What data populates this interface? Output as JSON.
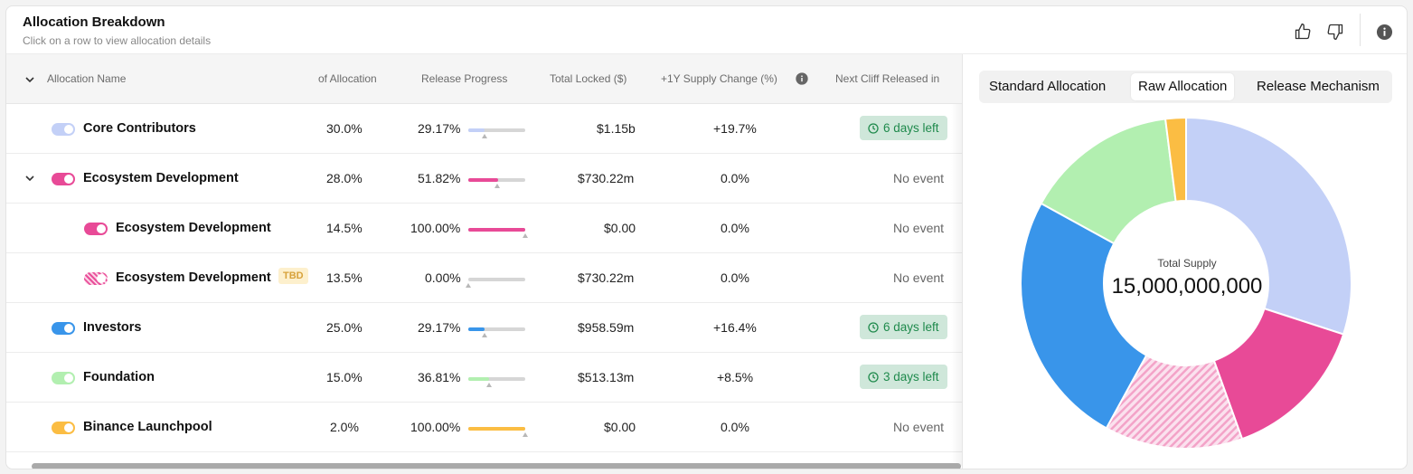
{
  "header": {
    "title": "Allocation Breakdown",
    "subtitle": "Click on a row to view allocation details"
  },
  "table": {
    "columns": {
      "name": "Allocation Name",
      "allocation": "of Allocation",
      "progress": "Release Progress",
      "locked": "Total Locked ($)",
      "supply_change": "+1Y Supply Change (%)",
      "next_cliff": "Next Cliff Released in"
    },
    "rows": [
      {
        "name": "Core Contributors",
        "allocation": "30.0%",
        "progress": "29.17%",
        "progress_value": 0.2917,
        "locked": "$1.15b",
        "supply_change": "+19.7%",
        "next_cliff": "6 days left",
        "color": "#c3d0f7"
      },
      {
        "name": "Ecosystem Development",
        "allocation": "28.0%",
        "progress": "51.82%",
        "progress_value": 0.5182,
        "locked": "$730.22m",
        "supply_change": "0.0%",
        "next_cliff": "No event",
        "color": "#e84a97"
      },
      {
        "name": "Ecosystem Development",
        "allocation": "14.5%",
        "progress": "100.00%",
        "progress_value": 1.0,
        "locked": "$0.00",
        "supply_change": "0.0%",
        "next_cliff": "No event",
        "color": "#e84a97"
      },
      {
        "name": "Ecosystem Development",
        "badge": "TBD",
        "allocation": "13.5%",
        "progress": "0.00%",
        "progress_value": 0.0,
        "locked": "$730.22m",
        "supply_change": "0.0%",
        "next_cliff": "No event",
        "color": "#e84a97"
      },
      {
        "name": "Investors",
        "allocation": "25.0%",
        "progress": "29.17%",
        "progress_value": 0.2917,
        "locked": "$958.59m",
        "supply_change": "+16.4%",
        "next_cliff": "6 days left",
        "color": "#3995ea"
      },
      {
        "name": "Foundation",
        "allocation": "15.0%",
        "progress": "36.81%",
        "progress_value": 0.3681,
        "locked": "$513.13m",
        "supply_change": "+8.5%",
        "next_cliff": "3 days left",
        "color": "#b2efb0"
      },
      {
        "name": "Binance Launchpool",
        "allocation": "2.0%",
        "progress": "100.00%",
        "progress_value": 1.0,
        "locked": "$0.00",
        "supply_change": "0.0%",
        "next_cliff": "No event",
        "color": "#fbbd43"
      }
    ]
  },
  "chart": {
    "tabs": [
      "Standard Allocation",
      "Raw Allocation",
      "Release Mechanism"
    ],
    "active_tab": "Raw Allocation",
    "center_label": "Total Supply",
    "center_value": "15,000,000,000"
  },
  "chart_data": {
    "type": "pie",
    "categories": [
      "Core Contributors",
      "Ecosystem Development",
      "Ecosystem Development (TBD)",
      "Investors",
      "Foundation",
      "Binance Launchpool"
    ],
    "values": [
      30.0,
      14.5,
      13.5,
      25.0,
      15.0,
      2.0
    ],
    "colors": [
      "#c3d0f7",
      "#e84a97",
      "#f7b9d6",
      "#3995ea",
      "#b2efb0",
      "#fbbd43"
    ]
  }
}
